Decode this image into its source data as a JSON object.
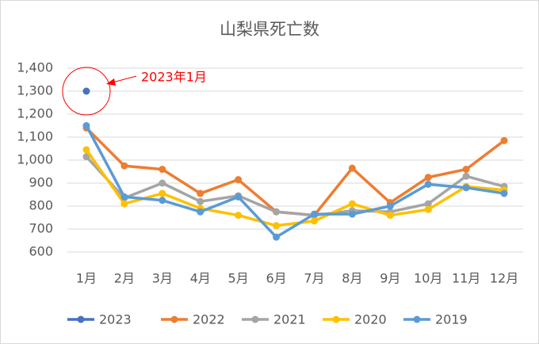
{
  "chart_data": {
    "type": "line",
    "title": "山梨県死亡数",
    "annotation": "2023年1月",
    "categories": [
      "1月",
      "2月",
      "3月",
      "4月",
      "5月",
      "6月",
      "7月",
      "8月",
      "9月",
      "10月",
      "11月",
      "12月"
    ],
    "series": [
      {
        "name": "2023",
        "color": "#4472c4",
        "values": [
          1300,
          null,
          null,
          null,
          null,
          null,
          null,
          null,
          null,
          null,
          null,
          null
        ]
      },
      {
        "name": "2022",
        "color": "#ed7d31",
        "values": [
          1140,
          975,
          960,
          855,
          915,
          775,
          760,
          965,
          815,
          925,
          960,
          1085
        ]
      },
      {
        "name": "2021",
        "color": "#a5a5a5",
        "values": [
          1015,
          835,
          900,
          820,
          845,
          775,
          760,
          780,
          775,
          810,
          930,
          885
        ]
      },
      {
        "name": "2020",
        "color": "#ffc000",
        "values": [
          1045,
          810,
          855,
          790,
          760,
          715,
          735,
          810,
          760,
          785,
          885,
          870
        ]
      },
      {
        "name": "2019",
        "color": "#5b9bd5",
        "values": [
          1150,
          840,
          825,
          775,
          840,
          665,
          765,
          765,
          800,
          895,
          880,
          855
        ]
      }
    ],
    "ylim": [
      600,
      1400
    ],
    "yticks": [
      600,
      700,
      800,
      900,
      {
        "value": 1000,
        "label": "1,000"
      },
      {
        "value": 1100,
        "label": "1,100"
      },
      {
        "value": 1200,
        "label": "1,200"
      },
      {
        "value": 1300,
        "label": "1,300"
      },
      {
        "value": 1400,
        "label": "1,400"
      }
    ],
    "grid": true,
    "legend": "bottom"
  }
}
